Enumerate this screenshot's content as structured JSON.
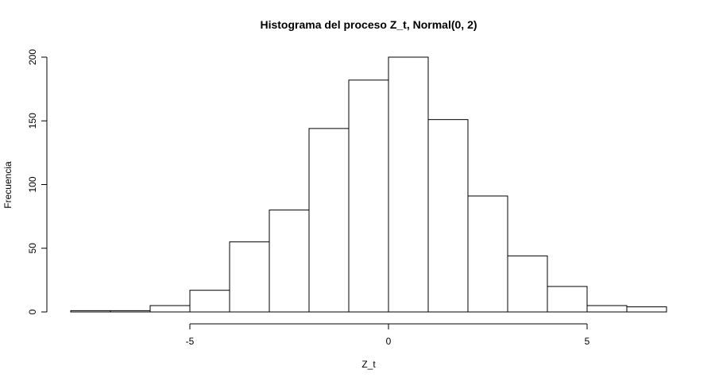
{
  "chart_data": {
    "type": "bar",
    "title": "Histograma del proceso Z_t, Normal(0, 2)",
    "xlabel": "Z_t",
    "ylabel": "Frecuencia",
    "bins": [
      {
        "start": -8,
        "end": -7,
        "count": 1
      },
      {
        "start": -7,
        "end": -6,
        "count": 1
      },
      {
        "start": -6,
        "end": -5,
        "count": 5
      },
      {
        "start": -5,
        "end": -4,
        "count": 17
      },
      {
        "start": -4,
        "end": -3,
        "count": 55
      },
      {
        "start": -3,
        "end": -2,
        "count": 80
      },
      {
        "start": -2,
        "end": -1,
        "count": 144
      },
      {
        "start": -1,
        "end": 0,
        "count": 182
      },
      {
        "start": 0,
        "end": 1,
        "count": 200
      },
      {
        "start": 1,
        "end": 2,
        "count": 151
      },
      {
        "start": 2,
        "end": 3,
        "count": 91
      },
      {
        "start": 3,
        "end": 4,
        "count": 44
      },
      {
        "start": 4,
        "end": 5,
        "count": 20
      },
      {
        "start": 5,
        "end": 6,
        "count": 5
      },
      {
        "start": 6,
        "end": 7,
        "count": 4
      }
    ],
    "xticks": [
      -5,
      0,
      5
    ],
    "yticks": [
      0,
      50,
      100,
      150,
      200
    ],
    "xlim": [
      -8,
      7
    ],
    "ylim": [
      0,
      200
    ],
    "grid": false,
    "legend": "none"
  }
}
